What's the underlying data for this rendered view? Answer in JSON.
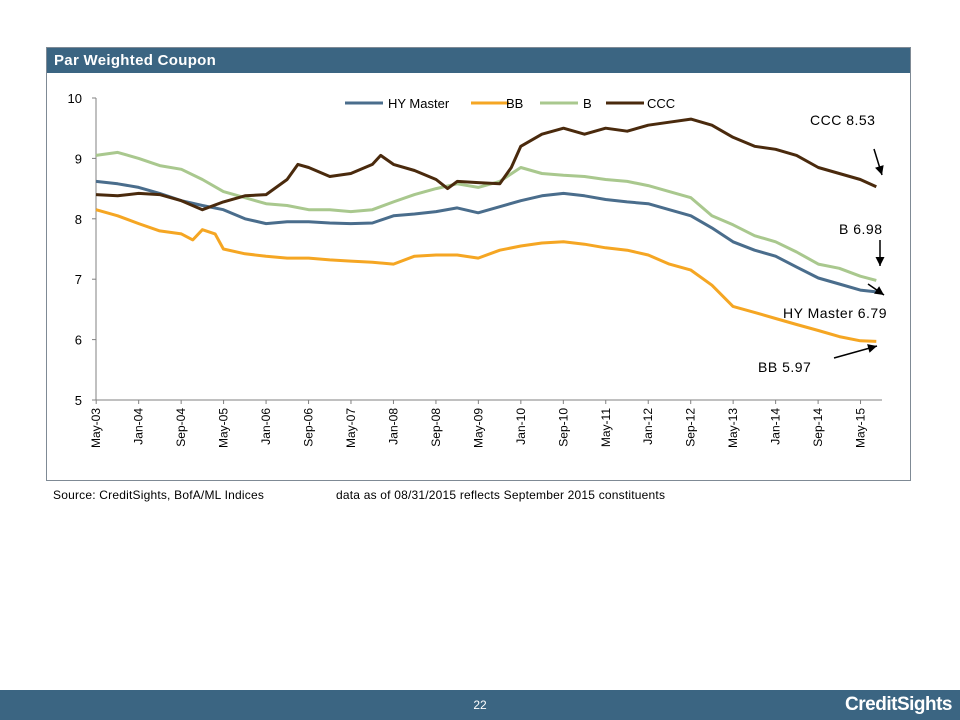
{
  "panel": {
    "title": "Par Weighted Coupon"
  },
  "source": "Source: CreditSights, BofA/ML Indices",
  "as_of": "data as of 08/31/2015 reflects September 2015 constituents",
  "footer": {
    "page_number": "22",
    "brand": "CreditSights"
  },
  "chart_data": {
    "type": "line",
    "title": "Par Weighted Coupon",
    "ylim": [
      5,
      10
    ],
    "yticks": [
      5,
      6,
      7,
      8,
      9,
      10
    ],
    "xlim": [
      2003.33,
      2015.67
    ],
    "xticks": [
      {
        "label": "May-03",
        "x": 2003.333
      },
      {
        "label": "Jan-04",
        "x": 2004.0
      },
      {
        "label": "Sep-04",
        "x": 2004.667
      },
      {
        "label": "May-05",
        "x": 2005.333
      },
      {
        "label": "Jan-06",
        "x": 2006.0
      },
      {
        "label": "Sep-06",
        "x": 2006.667
      },
      {
        "label": "May-07",
        "x": 2007.333
      },
      {
        "label": "Jan-08",
        "x": 2008.0
      },
      {
        "label": "Sep-08",
        "x": 2008.667
      },
      {
        "label": "May-09",
        "x": 2009.333
      },
      {
        "label": "Jan-10",
        "x": 2010.0
      },
      {
        "label": "Sep-10",
        "x": 2010.667
      },
      {
        "label": "May-11",
        "x": 2011.333
      },
      {
        "label": "Jan-12",
        "x": 2012.0
      },
      {
        "label": "Sep-12",
        "x": 2012.667
      },
      {
        "label": "May-13",
        "x": 2013.333
      },
      {
        "label": "Jan-14",
        "x": 2014.0
      },
      {
        "label": "Sep-14",
        "x": 2014.667
      },
      {
        "label": "May-15",
        "x": 2015.333
      }
    ],
    "legend_position": "top-center",
    "series": [
      {
        "name": "HY Master",
        "color": "#4a6d8c",
        "x": [
          2003.33,
          2003.67,
          2004.0,
          2004.33,
          2004.67,
          2005.0,
          2005.33,
          2005.67,
          2006.0,
          2006.33,
          2006.67,
          2007.0,
          2007.33,
          2007.67,
          2008.0,
          2008.33,
          2008.67,
          2009.0,
          2009.33,
          2009.67,
          2010.0,
          2010.33,
          2010.67,
          2011.0,
          2011.33,
          2011.67,
          2012.0,
          2012.33,
          2012.67,
          2013.0,
          2013.33,
          2013.67,
          2014.0,
          2014.33,
          2014.67,
          2015.0,
          2015.33,
          2015.58
        ],
        "y": [
          8.62,
          8.58,
          8.52,
          8.42,
          8.3,
          8.22,
          8.15,
          8.0,
          7.92,
          7.95,
          7.95,
          7.93,
          7.92,
          7.93,
          8.05,
          8.08,
          8.12,
          8.18,
          8.1,
          8.2,
          8.3,
          8.38,
          8.42,
          8.38,
          8.32,
          8.28,
          8.25,
          8.15,
          8.05,
          7.85,
          7.62,
          7.48,
          7.38,
          7.2,
          7.02,
          6.92,
          6.82,
          6.79
        ]
      },
      {
        "name": "BB",
        "color": "#f5a623",
        "x": [
          2003.33,
          2003.67,
          2004.0,
          2004.33,
          2004.67,
          2004.85,
          2005.0,
          2005.2,
          2005.33,
          2005.67,
          2006.0,
          2006.33,
          2006.67,
          2007.0,
          2007.33,
          2007.67,
          2008.0,
          2008.33,
          2008.67,
          2009.0,
          2009.33,
          2009.67,
          2010.0,
          2010.33,
          2010.67,
          2011.0,
          2011.33,
          2011.67,
          2012.0,
          2012.33,
          2012.67,
          2013.0,
          2013.33,
          2013.67,
          2014.0,
          2014.33,
          2014.67,
          2015.0,
          2015.33,
          2015.58
        ],
        "y": [
          8.15,
          8.05,
          7.92,
          7.8,
          7.75,
          7.65,
          7.82,
          7.75,
          7.5,
          7.42,
          7.38,
          7.35,
          7.35,
          7.32,
          7.3,
          7.28,
          7.25,
          7.38,
          7.4,
          7.4,
          7.35,
          7.48,
          7.55,
          7.6,
          7.62,
          7.58,
          7.52,
          7.48,
          7.4,
          7.25,
          7.15,
          6.9,
          6.55,
          6.45,
          6.35,
          6.25,
          6.15,
          6.05,
          5.98,
          5.97
        ]
      },
      {
        "name": "B",
        "color": "#a9c88e",
        "x": [
          2003.33,
          2003.67,
          2004.0,
          2004.33,
          2004.67,
          2005.0,
          2005.33,
          2005.67,
          2006.0,
          2006.33,
          2006.67,
          2007.0,
          2007.33,
          2007.67,
          2008.0,
          2008.33,
          2008.67,
          2009.0,
          2009.33,
          2009.67,
          2010.0,
          2010.33,
          2010.67,
          2011.0,
          2011.33,
          2011.67,
          2012.0,
          2012.33,
          2012.67,
          2013.0,
          2013.33,
          2013.67,
          2014.0,
          2014.33,
          2014.67,
          2015.0,
          2015.33,
          2015.58
        ],
        "y": [
          9.05,
          9.1,
          9.0,
          8.88,
          8.82,
          8.65,
          8.45,
          8.35,
          8.25,
          8.22,
          8.15,
          8.15,
          8.12,
          8.15,
          8.28,
          8.4,
          8.5,
          8.58,
          8.52,
          8.62,
          8.85,
          8.75,
          8.72,
          8.7,
          8.65,
          8.62,
          8.55,
          8.45,
          8.35,
          8.05,
          7.9,
          7.72,
          7.62,
          7.45,
          7.25,
          7.18,
          7.05,
          6.98
        ]
      },
      {
        "name": "CCC",
        "color": "#4a2a0d",
        "x": [
          2003.33,
          2003.67,
          2004.0,
          2004.33,
          2004.67,
          2005.0,
          2005.33,
          2005.67,
          2006.0,
          2006.33,
          2006.5,
          2006.67,
          2007.0,
          2007.33,
          2007.67,
          2007.8,
          2008.0,
          2008.33,
          2008.67,
          2008.85,
          2009.0,
          2009.33,
          2009.67,
          2009.85,
          2010.0,
          2010.33,
          2010.67,
          2011.0,
          2011.33,
          2011.67,
          2012.0,
          2012.33,
          2012.67,
          2013.0,
          2013.33,
          2013.67,
          2014.0,
          2014.33,
          2014.67,
          2015.0,
          2015.33,
          2015.58
        ],
        "y": [
          8.4,
          8.38,
          8.42,
          8.4,
          8.3,
          8.15,
          8.28,
          8.38,
          8.4,
          8.65,
          8.9,
          8.85,
          8.7,
          8.75,
          8.9,
          9.05,
          8.9,
          8.8,
          8.65,
          8.5,
          8.62,
          8.6,
          8.58,
          8.85,
          9.2,
          9.4,
          9.5,
          9.4,
          9.5,
          9.45,
          9.55,
          9.6,
          9.65,
          9.55,
          9.35,
          9.2,
          9.15,
          9.05,
          8.85,
          8.75,
          8.65,
          8.53
        ]
      }
    ],
    "annotations": [
      {
        "text": "CCC  8.53",
        "series": "CCC",
        "value": 8.53
      },
      {
        "text": "B  6.98",
        "series": "B",
        "value": 6.98
      },
      {
        "text": "HY Master 6.79",
        "series": "HY Master",
        "value": 6.79
      },
      {
        "text": "BB  5.97",
        "series": "BB",
        "value": 5.97
      }
    ]
  }
}
